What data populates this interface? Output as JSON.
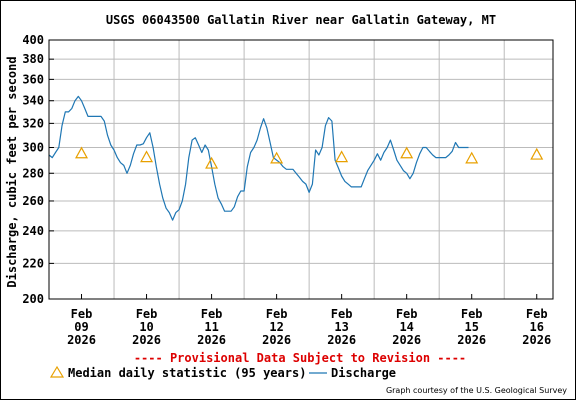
{
  "chart_data": {
    "type": "line",
    "title": "USGS 06043500 Gallatin River near Gallatin Gateway, MT",
    "ylabel": "Discharge, cubic feet per second",
    "xlabel": "",
    "ylim": [
      200,
      400
    ],
    "y_scale": "log",
    "yticks": [
      200,
      220,
      240,
      260,
      280,
      300,
      320,
      340,
      360,
      380,
      400
    ],
    "x_range_days": [
      0,
      7.75
    ],
    "xticks": [
      {
        "day": 0,
        "line1": "Feb",
        "line2": "09",
        "line3": "2026"
      },
      {
        "day": 1,
        "line1": "Feb",
        "line2": "10",
        "line3": "2026"
      },
      {
        "day": 2,
        "line1": "Feb",
        "line2": "11",
        "line3": "2026"
      },
      {
        "day": 3,
        "line1": "Feb",
        "line2": "12",
        "line3": "2026"
      },
      {
        "day": 4,
        "line1": "Feb",
        "line2": "13",
        "line3": "2026"
      },
      {
        "day": 5,
        "line1": "Feb",
        "line2": "14",
        "line3": "2026"
      },
      {
        "day": 6,
        "line1": "Feb",
        "line2": "15",
        "line3": "2026"
      },
      {
        "day": 7,
        "line1": "Feb",
        "line2": "16",
        "line3": "2026"
      }
    ],
    "grid": true,
    "series": [
      {
        "name": "Discharge",
        "color": "#1f77b4",
        "points": [
          [
            0.0,
            294
          ],
          [
            0.05,
            292
          ],
          [
            0.1,
            296
          ],
          [
            0.15,
            300
          ],
          [
            0.2,
            318
          ],
          [
            0.25,
            330
          ],
          [
            0.3,
            330
          ],
          [
            0.35,
            333
          ],
          [
            0.4,
            340
          ],
          [
            0.45,
            344
          ],
          [
            0.5,
            340
          ],
          [
            0.55,
            333
          ],
          [
            0.6,
            326
          ],
          [
            0.7,
            326
          ],
          [
            0.8,
            326
          ],
          [
            0.85,
            322
          ],
          [
            0.9,
            310
          ],
          [
            0.95,
            302
          ],
          [
            1.0,
            298
          ],
          [
            1.05,
            292
          ],
          [
            1.1,
            288
          ],
          [
            1.15,
            286
          ],
          [
            1.2,
            280
          ],
          [
            1.25,
            286
          ],
          [
            1.3,
            295
          ],
          [
            1.35,
            302
          ],
          [
            1.4,
            302
          ],
          [
            1.45,
            303
          ],
          [
            1.5,
            308
          ],
          [
            1.55,
            312
          ],
          [
            1.6,
            300
          ],
          [
            1.65,
            285
          ],
          [
            1.7,
            272
          ],
          [
            1.75,
            262
          ],
          [
            1.8,
            255
          ],
          [
            1.85,
            252
          ],
          [
            1.9,
            247
          ],
          [
            1.95,
            252
          ],
          [
            2.0,
            254
          ],
          [
            2.05,
            260
          ],
          [
            2.1,
            272
          ],
          [
            2.15,
            292
          ],
          [
            2.2,
            306
          ],
          [
            2.25,
            308
          ],
          [
            2.3,
            302
          ],
          [
            2.35,
            296
          ],
          [
            2.4,
            302
          ],
          [
            2.45,
            298
          ],
          [
            2.5,
            285
          ],
          [
            2.55,
            272
          ],
          [
            2.6,
            262
          ],
          [
            2.65,
            258
          ],
          [
            2.7,
            253
          ],
          [
            2.75,
            253
          ],
          [
            2.8,
            253
          ],
          [
            2.85,
            256
          ],
          [
            2.9,
            263
          ],
          [
            2.95,
            267
          ],
          [
            3.0,
            267
          ],
          [
            3.05,
            285
          ],
          [
            3.1,
            296
          ],
          [
            3.15,
            300
          ],
          [
            3.2,
            306
          ],
          [
            3.25,
            316
          ],
          [
            3.3,
            324
          ],
          [
            3.35,
            316
          ],
          [
            3.4,
            304
          ],
          [
            3.45,
            292
          ],
          [
            3.55,
            288
          ],
          [
            3.6,
            285
          ],
          [
            3.65,
            283
          ],
          [
            3.7,
            283
          ],
          [
            3.75,
            283
          ],
          [
            3.8,
            280
          ],
          [
            3.85,
            277
          ],
          [
            3.9,
            274
          ],
          [
            3.95,
            272
          ],
          [
            4.0,
            266
          ],
          [
            4.05,
            272
          ],
          [
            4.1,
            298
          ],
          [
            4.15,
            294
          ],
          [
            4.2,
            300
          ],
          [
            4.25,
            318
          ],
          [
            4.3,
            325
          ],
          [
            4.35,
            322
          ],
          [
            4.4,
            290
          ],
          [
            4.45,
            284
          ],
          [
            4.5,
            278
          ],
          [
            4.55,
            274
          ],
          [
            4.6,
            272
          ],
          [
            4.65,
            270
          ],
          [
            4.75,
            270
          ],
          [
            4.8,
            270
          ],
          [
            4.85,
            276
          ],
          [
            4.9,
            282
          ],
          [
            4.95,
            286
          ],
          [
            5.0,
            290
          ],
          [
            5.05,
            295
          ],
          [
            5.1,
            290
          ],
          [
            5.15,
            296
          ],
          [
            5.2,
            300
          ],
          [
            5.25,
            306
          ],
          [
            5.3,
            298
          ],
          [
            5.35,
            290
          ],
          [
            5.4,
            286
          ],
          [
            5.45,
            282
          ],
          [
            5.5,
            280
          ],
          [
            5.55,
            276
          ],
          [
            5.6,
            280
          ],
          [
            5.65,
            288
          ],
          [
            5.7,
            295
          ],
          [
            5.75,
            300
          ],
          [
            5.8,
            300
          ],
          [
            5.85,
            297
          ],
          [
            5.9,
            294
          ],
          [
            5.95,
            292
          ],
          [
            6.0,
            292
          ],
          [
            6.05,
            292
          ],
          [
            6.1,
            292
          ],
          [
            6.15,
            294
          ],
          [
            6.2,
            297
          ],
          [
            6.25,
            304
          ],
          [
            6.3,
            300
          ],
          [
            6.35,
            300
          ],
          [
            6.45,
            300
          ]
        ]
      },
      {
        "name": "Median daily statistic (95 years)",
        "color": "#e8a000",
        "marker": "triangle",
        "points": [
          [
            0.5,
            295
          ],
          [
            1.5,
            292
          ],
          [
            2.5,
            287
          ],
          [
            3.5,
            291
          ],
          [
            4.5,
            292
          ],
          [
            5.5,
            295
          ],
          [
            6.5,
            291
          ],
          [
            7.5,
            294
          ]
        ]
      }
    ]
  },
  "notice": "---- Provisional Data Subject to Revision ----",
  "legend": {
    "median_label": "Median daily statistic (95 years)",
    "discharge_label": "Discharge"
  },
  "credit": "Graph courtesy of the U.S. Geological Survey",
  "colors": {
    "discharge": "#1f77b4",
    "median": "#e8a000",
    "notice": "#dd0000",
    "grid": "#bbbbbb"
  }
}
